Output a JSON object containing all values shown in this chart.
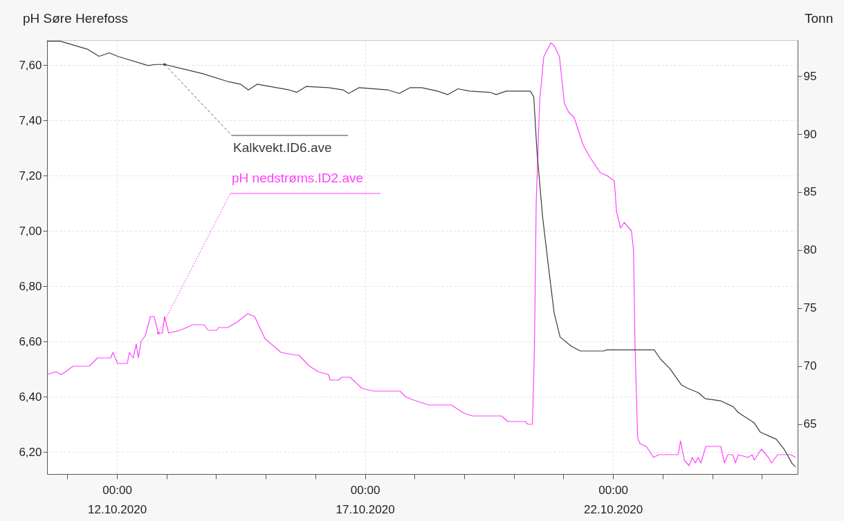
{
  "chart_data": {
    "type": "line",
    "ylabel": "pH Søre Herefoss",
    "y2label": "Tonn",
    "grid": true,
    "xlim": [
      "2020-10-10T14:10",
      "2020-10-25T17:20"
    ],
    "xticks": [
      {
        "value": "2020-10-11T00:00",
        "label": null
      },
      {
        "value": "2020-10-12T00:00",
        "label": "00:00\n12.10.2020"
      },
      {
        "value": "2020-10-13T00:00",
        "label": null
      },
      {
        "value": "2020-10-14T00:00",
        "label": null
      },
      {
        "value": "2020-10-15T00:00",
        "label": null
      },
      {
        "value": "2020-10-16T00:00",
        "label": null
      },
      {
        "value": "2020-10-17T00:00",
        "label": "00:00\n17.10.2020"
      },
      {
        "value": "2020-10-18T00:00",
        "label": null
      },
      {
        "value": "2020-10-19T00:00",
        "label": null
      },
      {
        "value": "2020-10-20T00:00",
        "label": null
      },
      {
        "value": "2020-10-21T00:00",
        "label": null
      },
      {
        "value": "2020-10-22T00:00",
        "label": "00:00\n22.10.2020"
      },
      {
        "value": "2020-10-23T00:00",
        "label": null
      },
      {
        "value": "2020-10-24T00:00",
        "label": null
      },
      {
        "value": "2020-10-25T00:00",
        "label": null
      }
    ],
    "ylim": [
      6.12,
      7.69
    ],
    "yticks": [
      {
        "value": 6.2,
        "label": "6,20"
      },
      {
        "value": 6.4,
        "label": "6,40"
      },
      {
        "value": 6.6,
        "label": "6,60"
      },
      {
        "value": 6.8,
        "label": "6,80"
      },
      {
        "value": 7.0,
        "label": "7,00"
      },
      {
        "value": 7.2,
        "label": "7,20"
      },
      {
        "value": 7.4,
        "label": "7,40"
      },
      {
        "value": 7.6,
        "label": "7,60"
      }
    ],
    "y2lim": [
      60.7,
      98.1
    ],
    "y2ticks": [
      65,
      70,
      75,
      80,
      85,
      90,
      95
    ],
    "series": [
      {
        "name": "pH nedstrøms.ID2.ave",
        "color": "#ff40ff",
        "x": [
          "2020-10-10T14:10",
          "2020-10-10T18:30",
          "2020-10-10T21:10",
          "2020-10-11T02:50",
          "2020-10-11T10:35",
          "2020-10-11T14:35",
          "2020-10-11T21:00",
          "2020-10-11T22:00",
          "2020-10-12T00:20",
          "2020-10-12T05:00",
          "2020-10-12T06:00",
          "2020-10-12T07:50",
          "2020-10-12T09:20",
          "2020-10-12T10:20",
          "2020-10-12T11:40",
          "2020-10-12T13:40",
          "2020-10-12T16:10",
          "2020-10-12T18:00",
          "2020-10-12T20:00",
          "2020-10-12T22:00",
          "2020-10-12T23:00",
          "2020-10-13T01:00",
          "2020-10-13T06:30",
          "2020-10-13T12:50",
          "2020-10-13T18:10",
          "2020-10-13T20:10",
          "2020-10-14T00:10",
          "2020-10-14T01:10",
          "2020-10-14T05:35",
          "2020-10-14T10:10",
          "2020-10-14T15:15",
          "2020-10-14T18:35",
          "2020-10-14T23:35",
          "2020-10-15T07:20",
          "2020-10-15T14:25",
          "2020-10-15T16:00",
          "2020-10-15T21:10",
          "2020-10-16T01:25",
          "2020-10-16T06:25",
          "2020-10-16T07:05",
          "2020-10-16T11:15",
          "2020-10-16T12:50",
          "2020-10-16T16:50",
          "2020-10-16T22:30",
          "2020-10-17T04:10",
          "2020-10-17T15:35",
          "2020-10-17T16:55",
          "2020-10-17T19:35",
          "2020-10-17T22:35",
          "2020-10-18T02:35",
          "2020-10-18T07:00",
          "2020-10-18T17:40",
          "2020-10-18T23:55",
          "2020-10-19T04:00",
          "2020-10-19T18:05",
          "2020-10-19T21:05",
          "2020-10-20T05:30",
          "2020-10-20T06:50",
          "2020-10-20T09:00",
          "2020-10-20T10:00",
          "2020-10-20T10:50",
          "2020-10-20T12:30",
          "2020-10-20T14:30",
          "2020-10-20T17:55",
          "2020-10-20T19:30",
          "2020-10-20T22:05",
          "2020-10-21T00:30",
          "2020-10-21T02:30",
          "2020-10-21T05:10",
          "2020-10-21T09:35",
          "2020-10-21T12:30",
          "2020-10-21T17:50",
          "2020-10-21T21:00",
          "2020-10-22T00:40",
          "2020-10-22T01:40",
          "2020-10-22T03:40",
          "2020-10-22T05:25",
          "2020-10-22T08:55",
          "2020-10-22T09:55",
          "2020-10-22T10:40",
          "2020-10-22T11:55",
          "2020-10-22T13:05",
          "2020-10-22T16:05",
          "2020-10-22T19:35",
          "2020-10-22T22:05",
          "2020-10-23T07:30",
          "2020-10-23T08:40",
          "2020-10-23T10:30",
          "2020-10-23T12:50",
          "2020-10-23T14:20",
          "2020-10-23T15:50",
          "2020-10-23T17:10",
          "2020-10-23T18:30",
          "2020-10-23T20:55",
          "2020-10-24T01:55",
          "2020-10-24T02:30",
          "2020-10-24T04:10",
          "2020-10-24T05:55",
          "2020-10-24T07:35",
          "2020-10-24T09:55",
          "2020-10-24T11:15",
          "2020-10-24T12:35",
          "2020-10-24T17:20",
          "2020-10-24T19:20",
          "2020-10-24T20:20",
          "2020-10-24T23:50",
          "2020-10-25T03:10",
          "2020-10-25T04:40",
          "2020-10-25T07:40",
          "2020-10-25T14:00",
          "2020-10-25T16:20"
        ],
        "values": [
          6.48,
          6.49,
          6.48,
          6.51,
          6.51,
          6.54,
          6.54,
          6.56,
          6.52,
          6.52,
          6.56,
          6.54,
          6.59,
          6.54,
          6.6,
          6.62,
          6.69,
          6.69,
          6.63,
          6.63,
          6.69,
          6.63,
          6.64,
          6.66,
          6.66,
          6.64,
          6.64,
          6.65,
          6.65,
          6.67,
          6.7,
          6.69,
          6.61,
          6.56,
          6.55,
          6.55,
          6.51,
          6.49,
          6.48,
          6.46,
          6.46,
          6.47,
          6.47,
          6.43,
          6.42,
          6.42,
          6.42,
          6.4,
          6.39,
          6.38,
          6.37,
          6.37,
          6.34,
          6.33,
          6.33,
          6.31,
          6.31,
          6.3,
          6.3,
          6.58,
          7.1,
          7.47,
          7.63,
          7.68,
          7.67,
          7.63,
          7.46,
          7.43,
          7.41,
          7.31,
          7.27,
          7.21,
          7.2,
          7.18,
          7.07,
          7.01,
          7.03,
          7.0,
          6.93,
          6.58,
          6.25,
          6.23,
          6.22,
          6.18,
          6.19,
          6.19,
          6.24,
          6.17,
          6.15,
          6.18,
          6.16,
          6.18,
          6.16,
          6.22,
          6.22,
          6.22,
          6.22,
          6.16,
          6.19,
          6.19,
          6.16,
          6.19,
          6.18,
          6.19,
          6.17,
          6.21,
          6.18,
          6.16,
          6.19,
          6.19,
          6.18
        ]
      },
      {
        "name": "Kalkvekt.ID6.ave",
        "color": "#3a3a3a",
        "axis": "y2",
        "x": [
          "2020-10-10T14:10",
          "2020-10-10T20:35",
          "2020-10-11T09:55",
          "2020-10-11T15:20",
          "2020-10-11T20:20",
          "2020-10-12T00:20",
          "2020-10-12T15:05",
          "2020-10-12T18:35",
          "2020-10-12T23:05",
          "2020-10-13T17:30",
          "2020-10-14T06:10",
          "2020-10-14T11:45",
          "2020-10-14T15:35",
          "2020-10-14T19:55",
          "2020-10-15T11:20",
          "2020-10-15T15:00",
          "2020-10-15T19:30",
          "2020-10-16T06:25",
          "2020-10-16T13:30",
          "2020-10-16T16:05",
          "2020-10-16T21:10",
          "2020-10-17T11:10",
          "2020-10-17T16:35",
          "2020-10-17T21:50",
          "2020-10-18T03:25",
          "2020-10-18T11:10",
          "2020-10-18T16:00",
          "2020-10-18T21:00",
          "2020-10-19T02:40",
          "2020-10-19T12:25",
          "2020-10-19T15:25",
          "2020-10-19T20:20",
          "2020-10-20T08:00",
          "2020-10-20T09:40",
          "2020-10-20T11:10",
          "2020-10-20T13:55",
          "2020-10-20T16:45",
          "2020-10-20T19:30",
          "2020-10-20T22:25",
          "2020-10-21T03:55",
          "2020-10-21T08:15",
          "2020-10-21T19:30",
          "2020-10-21T20:55",
          "2020-10-22T19:55",
          "2020-10-22T23:00",
          "2020-10-23T03:25",
          "2020-10-23T09:00",
          "2020-10-23T12:00",
          "2020-10-23T17:25",
          "2020-10-23T20:30",
          "2020-10-24T04:10",
          "2020-10-24T10:10",
          "2020-10-24T12:35",
          "2020-10-24T20:20",
          "2020-10-24T23:20",
          "2020-10-25T03:10",
          "2020-10-25T07:00",
          "2020-10-25T10:55",
          "2020-10-25T14:40",
          "2020-10-25T16:20"
        ],
        "values": [
          98.0,
          98.0,
          97.3,
          96.7,
          97.0,
          96.7,
          95.9,
          96.0,
          96.0,
          95.2,
          94.5,
          94.3,
          93.8,
          94.3,
          93.8,
          93.6,
          94.1,
          94.0,
          93.8,
          93.5,
          94.0,
          93.8,
          93.5,
          94.0,
          94.0,
          93.7,
          93.4,
          93.9,
          93.7,
          93.6,
          93.4,
          93.7,
          93.7,
          93.2,
          88.6,
          82.9,
          78.6,
          74.6,
          72.5,
          71.7,
          71.3,
          71.3,
          71.4,
          71.4,
          70.6,
          69.8,
          68.4,
          68.1,
          67.7,
          67.2,
          67.0,
          66.5,
          66.0,
          65.1,
          64.3,
          64.0,
          63.7,
          62.8,
          61.6,
          61.3
        ]
      }
    ]
  }
}
